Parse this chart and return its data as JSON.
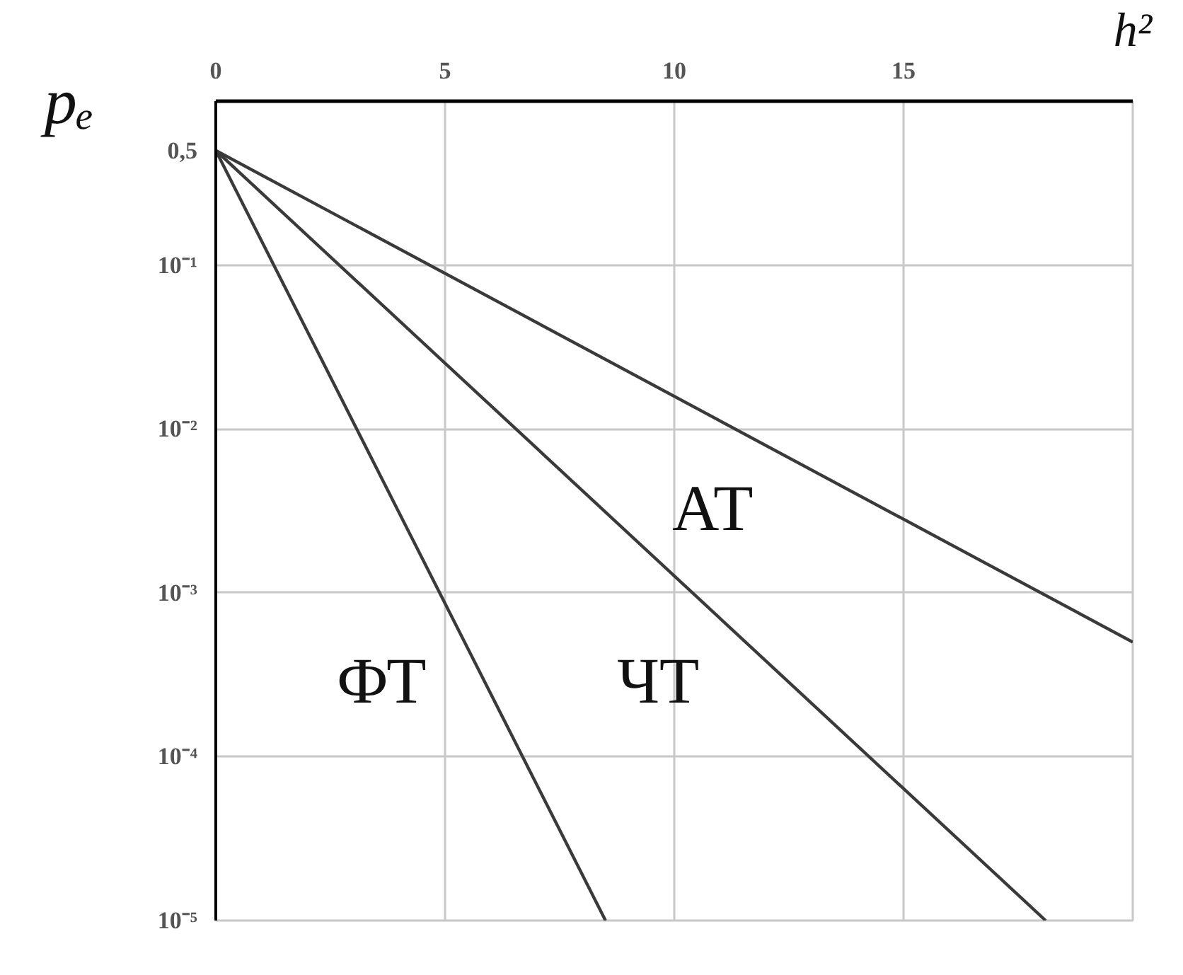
{
  "chart_data": {
    "type": "line",
    "xlabel": "h²",
    "ylabel": "pₑ",
    "log": "y",
    "grid": true,
    "xlim": [
      0,
      20
    ],
    "xticks": [
      0,
      5,
      10,
      15
    ],
    "ylim": [
      1e-05,
      1
    ],
    "yticks": [
      {
        "value": 0.5,
        "label": "0,5"
      },
      {
        "value": 0.1,
        "label": "10⁻¹"
      },
      {
        "value": 0.01,
        "label": "10⁻²"
      },
      {
        "value": 0.001,
        "label": "10⁻³"
      },
      {
        "value": 0.0001,
        "label": "10⁻⁴"
      },
      {
        "value": 1e-05,
        "label": "10⁻⁵"
      }
    ],
    "series": [
      {
        "name": "ФТ",
        "color": "#3a3a3a",
        "x": [
          0,
          8.5
        ],
        "values": [
          0.5,
          1e-05
        ]
      },
      {
        "name": "ЧТ",
        "color": "#3a3a3a",
        "x": [
          0,
          18.1
        ],
        "values": [
          0.5,
          1e-05
        ]
      },
      {
        "name": "АТ",
        "color": "#3a3a3a",
        "x": [
          0,
          20
        ],
        "values": [
          0.5,
          0.0005
        ]
      }
    ]
  }
}
